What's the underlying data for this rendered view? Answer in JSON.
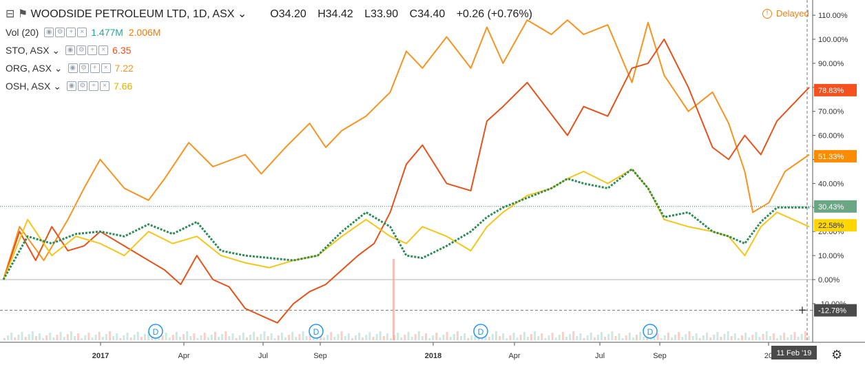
{
  "header": {
    "symbol_title": "WOODSIDE PETROLEUM LTD, 1D, ASX",
    "open": "O34.20",
    "high": "H34.42",
    "low": "L33.90",
    "close": "C34.40",
    "change": "+0.26 (+0.76%)",
    "delayed_label": "Delayed"
  },
  "legend": {
    "vol": {
      "label": "Vol (20)",
      "value1": "1.477M",
      "value2": "2.006M"
    },
    "sto": {
      "label": "STO, ASX",
      "value": "6.35",
      "color": "#e8501a"
    },
    "org": {
      "label": "ORG, ASX",
      "value": "7.22",
      "color": "#f7931e"
    },
    "osh": {
      "label": "OSH, ASX",
      "value": "7.66",
      "color": "#f5c518"
    }
  },
  "markers": {
    "dividend": "D"
  },
  "chart_data": {
    "type": "line",
    "y_unit": "%",
    "ylim": [
      -20,
      114
    ],
    "yticks": [
      "110.00%",
      "100.00%",
      "90.00%",
      "80.00%",
      "70.00%",
      "60.00%",
      "50.00%",
      "40.00%",
      "30.00%",
      "20.00%",
      "10.00%",
      "0.00%",
      "-10.00%"
    ],
    "xticks": [
      "2017",
      "Apr",
      "Jul",
      "Sep",
      "2018",
      "Apr",
      "Jul",
      "Sep",
      "20"
    ],
    "crosshair_date": "11 Feb '19",
    "price_labels": [
      {
        "text": "78.83%",
        "value": 78.83,
        "color": "#f4511e"
      },
      {
        "text": "51.33%",
        "value": 51.33,
        "color": "#fb8c00"
      },
      {
        "text": "30.43%",
        "value": 30.43,
        "color": "#6aa683"
      },
      {
        "text": "22.58%",
        "value": 22.58,
        "color": "#ffd600"
      },
      {
        "text": "-12.78%",
        "value": -12.78,
        "color": "#4a4a4a"
      }
    ],
    "series": [
      {
        "name": "ORG, ASX",
        "color": "#f7931e",
        "x": [
          0,
          0.02,
          0.05,
          0.08,
          0.1,
          0.12,
          0.15,
          0.18,
          0.2,
          0.23,
          0.26,
          0.3,
          0.32,
          0.35,
          0.38,
          0.4,
          0.42,
          0.45,
          0.48,
          0.5,
          0.52,
          0.55,
          0.58,
          0.6,
          0.62,
          0.65,
          0.68,
          0.7,
          0.72,
          0.75,
          0.78,
          0.8,
          0.82,
          0.85,
          0.88,
          0.9,
          0.92,
          0.93,
          0.95,
          0.97,
          1.0
        ],
        "values": [
          0,
          22,
          8,
          25,
          38,
          50,
          38,
          33,
          42,
          57,
          47,
          52,
          44,
          55,
          65,
          55,
          62,
          68,
          78,
          95,
          88,
          101,
          88,
          105,
          90,
          108,
          102,
          108,
          102,
          106,
          82,
          107,
          85,
          70,
          78,
          65,
          45,
          28,
          32,
          45,
          52
        ]
      },
      {
        "name": "STO, ASX",
        "color": "#e8501a",
        "x": [
          0,
          0.02,
          0.04,
          0.06,
          0.08,
          0.1,
          0.12,
          0.15,
          0.18,
          0.2,
          0.22,
          0.24,
          0.26,
          0.28,
          0.3,
          0.32,
          0.34,
          0.36,
          0.38,
          0.4,
          0.42,
          0.44,
          0.46,
          0.48,
          0.5,
          0.52,
          0.55,
          0.58,
          0.6,
          0.62,
          0.65,
          0.7,
          0.72,
          0.75,
          0.78,
          0.8,
          0.82,
          0.85,
          0.88,
          0.9,
          0.92,
          0.94,
          0.96,
          1.0
        ],
        "values": [
          0,
          20,
          8,
          22,
          12,
          14,
          20,
          14,
          8,
          4,
          -2,
          10,
          0,
          -3,
          -12,
          -15,
          -18,
          -10,
          -5,
          -2,
          4,
          10,
          15,
          28,
          48,
          56,
          40,
          37,
          66,
          72,
          82,
          60,
          72,
          68,
          88,
          90,
          100,
          80,
          55,
          50,
          60,
          52,
          66,
          80
        ]
      },
      {
        "name": "OSH, ASX",
        "color": "#f5c518",
        "x": [
          0,
          0.03,
          0.06,
          0.09,
          0.12,
          0.15,
          0.18,
          0.21,
          0.24,
          0.27,
          0.3,
          0.33,
          0.36,
          0.39,
          0.42,
          0.45,
          0.48,
          0.5,
          0.52,
          0.55,
          0.58,
          0.6,
          0.62,
          0.65,
          0.68,
          0.7,
          0.72,
          0.75,
          0.78,
          0.8,
          0.82,
          0.85,
          0.88,
          0.9,
          0.92,
          0.94,
          0.96,
          1.0
        ],
        "values": [
          0,
          25,
          10,
          18,
          15,
          10,
          20,
          15,
          18,
          10,
          7,
          5,
          8,
          10,
          18,
          25,
          18,
          15,
          22,
          18,
          12,
          22,
          28,
          35,
          38,
          42,
          45,
          40,
          46,
          38,
          25,
          22,
          20,
          18,
          10,
          22,
          28,
          22
        ]
      },
      {
        "name": "WOODSIDE PETROLEUM LTD",
        "color": "#2e8b57",
        "x": [
          0,
          0.03,
          0.06,
          0.09,
          0.12,
          0.15,
          0.18,
          0.21,
          0.24,
          0.27,
          0.3,
          0.33,
          0.36,
          0.39,
          0.42,
          0.45,
          0.48,
          0.5,
          0.52,
          0.55,
          0.58,
          0.6,
          0.62,
          0.65,
          0.68,
          0.7,
          0.72,
          0.75,
          0.78,
          0.8,
          0.82,
          0.85,
          0.88,
          0.9,
          0.92,
          0.94,
          0.96,
          1.0
        ],
        "values": [
          0,
          18,
          15,
          19,
          20,
          18,
          23,
          19,
          24,
          12,
          10,
          9,
          8,
          10,
          20,
          28,
          22,
          10,
          9,
          14,
          20,
          26,
          30,
          34,
          38,
          42,
          40,
          38,
          46,
          38,
          26,
          28,
          20,
          18,
          15,
          24,
          30,
          30
        ]
      }
    ]
  }
}
